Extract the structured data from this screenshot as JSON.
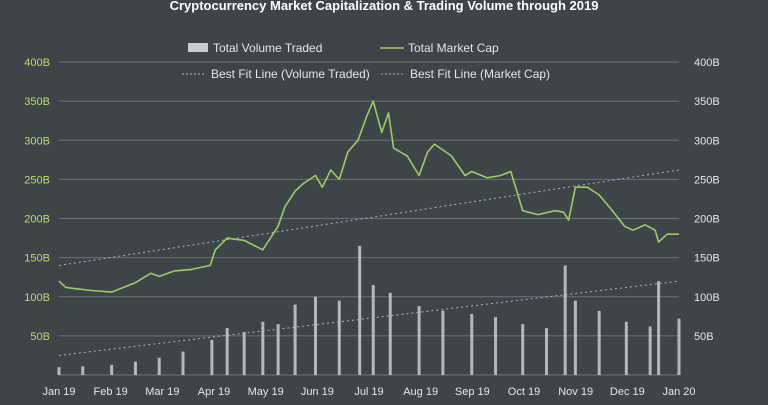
{
  "chart_data": {
    "type": "bar",
    "title": "Cryptocurrency Market Capitalization & Trading Volume through 2019",
    "legend": {
      "placement": "top",
      "entries": [
        {
          "label": "Total Volume Traded",
          "kind": "bar"
        },
        {
          "label": "Total Market Cap",
          "kind": "line"
        },
        {
          "label": "Best Fit Line (Volume Traded)",
          "kind": "dashed"
        },
        {
          "label": "Best Fit Line (Market Cap)",
          "kind": "dashed"
        }
      ]
    },
    "x_ticks": [
      "Jan 19",
      "Feb 19",
      "Mar 19",
      "Apr 19",
      "May 19",
      "Jun 19",
      "Jul 19",
      "Aug 19",
      "Sep 19",
      "Oct 19",
      "Nov 19",
      "Dec 19",
      "Jan 20"
    ],
    "y_left": {
      "ticks": [
        "50B",
        "100B",
        "150B",
        "200B",
        "250B",
        "300B",
        "350B",
        "400B"
      ],
      "ylim": [
        0,
        400
      ],
      "unit": "B"
    },
    "y_right": {
      "ticks": [
        "50B",
        "100B",
        "150B",
        "200B",
        "250B",
        "300B",
        "350B",
        "400B"
      ],
      "ylim": [
        0,
        400
      ],
      "unit": "B"
    },
    "grid": "horizontal",
    "colors": {
      "background": "#3d4548",
      "grid": "#6b7378",
      "bars": "#c9cdd0",
      "line": "#9ccc65",
      "fit_line": "#aab4ba",
      "title": "#ffffff",
      "left_ticks": "#b6dd6a",
      "right_ticks": "#e3e6e8"
    },
    "series": [
      {
        "name": "Total Volume Traded",
        "kind": "bar",
        "x": [
          "2019-01-01",
          "2019-01-15",
          "2019-02-01",
          "2019-02-15",
          "2019-03-01",
          "2019-03-15",
          "2019-04-01",
          "2019-04-10",
          "2019-04-20",
          "2019-05-01",
          "2019-05-10",
          "2019-05-20",
          "2019-06-01",
          "2019-06-15",
          "2019-06-27",
          "2019-07-05",
          "2019-07-15",
          "2019-08-01",
          "2019-08-15",
          "2019-09-01",
          "2019-09-15",
          "2019-10-01",
          "2019-10-15",
          "2019-10-26",
          "2019-11-01",
          "2019-11-15",
          "2019-12-01",
          "2019-12-15",
          "2019-12-20",
          "2020-01-01"
        ],
        "values": [
          10,
          11,
          13,
          17,
          22,
          30,
          45,
          60,
          55,
          68,
          65,
          90,
          100,
          95,
          165,
          115,
          105,
          88,
          82,
          78,
          74,
          65,
          60,
          140,
          95,
          82,
          68,
          62,
          120,
          72
        ]
      },
      {
        "name": "Total Market Cap",
        "kind": "line",
        "x": [
          "2019-01-01",
          "2019-01-05",
          "2019-01-12",
          "2019-01-20",
          "2019-02-01",
          "2019-02-08",
          "2019-02-15",
          "2019-02-24",
          "2019-03-01",
          "2019-03-10",
          "2019-03-20",
          "2019-03-31",
          "2019-04-03",
          "2019-04-10",
          "2019-04-20",
          "2019-05-01",
          "2019-05-10",
          "2019-05-14",
          "2019-05-20",
          "2019-05-25",
          "2019-06-01",
          "2019-06-05",
          "2019-06-10",
          "2019-06-15",
          "2019-06-20",
          "2019-06-26",
          "2019-07-01",
          "2019-07-05",
          "2019-07-10",
          "2019-07-14",
          "2019-07-17",
          "2019-07-25",
          "2019-08-01",
          "2019-08-06",
          "2019-08-10",
          "2019-08-20",
          "2019-08-28",
          "2019-09-01",
          "2019-09-10",
          "2019-09-18",
          "2019-09-24",
          "2019-10-01",
          "2019-10-10",
          "2019-10-20",
          "2019-10-25",
          "2019-10-28",
          "2019-11-01",
          "2019-11-08",
          "2019-11-15",
          "2019-11-22",
          "2019-11-30",
          "2019-12-05",
          "2019-12-12",
          "2019-12-18",
          "2019-12-20",
          "2019-12-25",
          "2020-01-01"
        ],
        "values": [
          120,
          112,
          110,
          108,
          106,
          112,
          118,
          130,
          126,
          133,
          135,
          140,
          160,
          175,
          172,
          160,
          190,
          215,
          235,
          245,
          255,
          240,
          262,
          250,
          285,
          300,
          330,
          350,
          310,
          335,
          290,
          280,
          255,
          285,
          295,
          280,
          255,
          260,
          252,
          255,
          260,
          210,
          205,
          210,
          208,
          198,
          240,
          240,
          230,
          212,
          190,
          185,
          192,
          185,
          170,
          180,
          180
        ]
      },
      {
        "name": "Best Fit Line (Volume Traded)",
        "kind": "fit",
        "x": [
          "2019-01-01",
          "2020-01-01"
        ],
        "values": [
          25,
          120
        ]
      },
      {
        "name": "Best Fit Line (Market Cap)",
        "kind": "fit",
        "x": [
          "2019-01-01",
          "2020-01-01"
        ],
        "values": [
          140,
          262
        ]
      }
    ]
  }
}
